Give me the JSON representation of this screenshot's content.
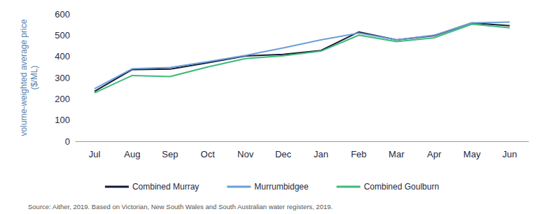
{
  "chart_data": {
    "type": "line",
    "ylabel": "volume-weighted average price\n($/ML)",
    "annotations": [
      "Source: Aither, 2019. Based on Victorian, New South Wales and South Australian water registers, 2019."
    ],
    "categories": [
      "Jul",
      "Aug",
      "Sep",
      "Oct",
      "Nov",
      "Dec",
      "Jan",
      "Feb",
      "Mar",
      "Apr",
      "May",
      "Jun"
    ],
    "series": [
      {
        "name": "Combined Murray",
        "color": "#141a33",
        "values": [
          235,
          338,
          340,
          370,
          402,
          410,
          428,
          515,
          478,
          498,
          558,
          545
        ]
      },
      {
        "name": "Murrumbidgee",
        "color": "#6a9fd8",
        "values": [
          248,
          342,
          348,
          375,
          405,
          440,
          478,
          510,
          478,
          500,
          558,
          562
        ]
      },
      {
        "name": "Combined Goulburn",
        "color": "#3dba7a",
        "values": [
          228,
          310,
          305,
          350,
          390,
          403,
          425,
          500,
          470,
          488,
          552,
          535
        ]
      }
    ],
    "ylim": [
      0,
      600
    ],
    "yticks": [
      0,
      100,
      200,
      300,
      400,
      500,
      600
    ],
    "grid": false,
    "legend": "bottom"
  }
}
